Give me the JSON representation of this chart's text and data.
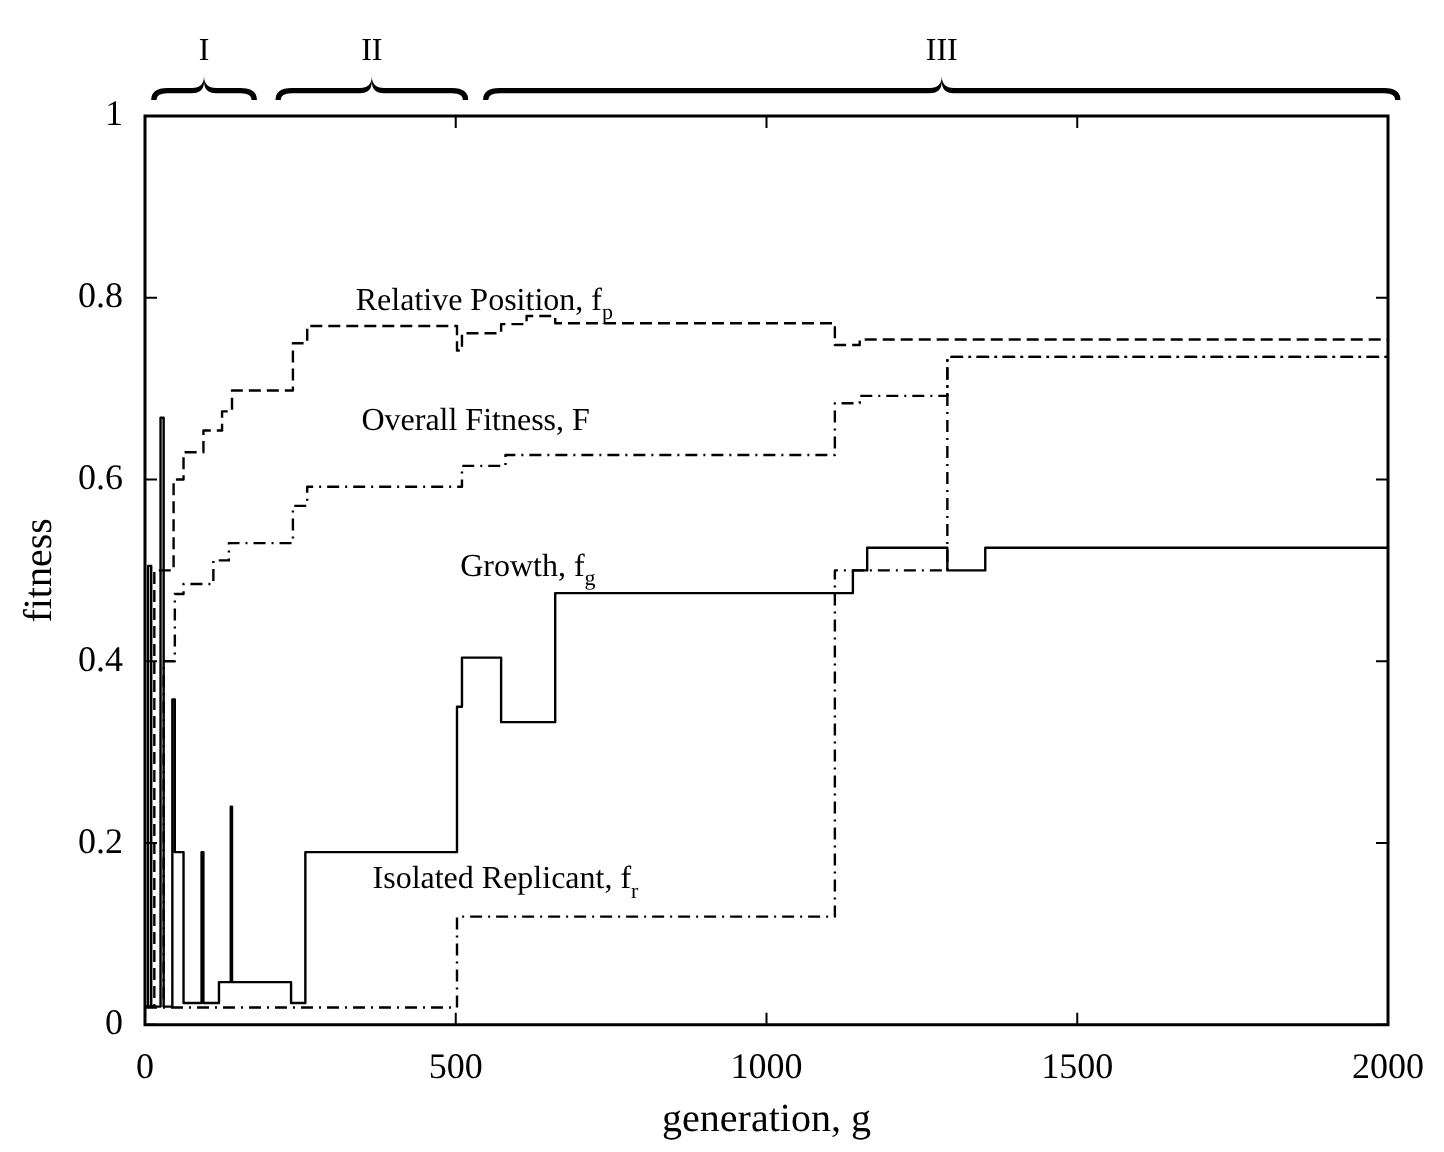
{
  "chart_data": {
    "type": "step",
    "xlabel": "generation, g",
    "ylabel": "fitness",
    "xlim": [
      0,
      2000
    ],
    "xticks": [
      0,
      500,
      1000,
      1500,
      2000
    ],
    "ylim": [
      0,
      1
    ],
    "yticks": [
      0,
      0.2,
      0.4,
      0.6,
      0.8,
      1
    ],
    "grid": false,
    "legend": false,
    "marker": "none",
    "series": [
      {
        "name": "Relative Position, f$_{p}$",
        "color": "#000000",
        "line_style": "dashed",
        "x": [
          0,
          15,
          46,
          62,
          94,
          124,
          140,
          238,
          261,
          502,
          510,
          573,
          614,
          660,
          1110,
          1150,
          2000
        ],
        "values": [
          0.02,
          0.5,
          0.6,
          0.63,
          0.654,
          0.675,
          0.698,
          0.75,
          0.769,
          0.742,
          0.761,
          0.771,
          0.78,
          0.772,
          0.748,
          0.754,
          0.754
        ]
      },
      {
        "name": "Overall Fitness, F",
        "color": "#000000",
        "line_style": "dotted",
        "x": [
          0,
          30,
          48,
          62,
          110,
          135,
          238,
          261,
          510,
          580,
          1110,
          1150,
          1291,
          2000
        ],
        "values": [
          0.02,
          0.4,
          0.474,
          0.485,
          0.511,
          0.53,
          0.571,
          0.592,
          0.615,
          0.627,
          0.684,
          0.692,
          0.735,
          0.735
        ]
      },
      {
        "name": "Growth, f$_{g}$",
        "color": "#000000",
        "line_style": "solid",
        "x": [
          0,
          5,
          10,
          25,
          30,
          44,
          48,
          62,
          91,
          94,
          119,
          138,
          140,
          235,
          258,
          502,
          510,
          573,
          660,
          1139,
          1162,
          1291,
          1352,
          2000
        ],
        "values": [
          0.02,
          0.505,
          0.02,
          0.668,
          0.02,
          0.358,
          0.19,
          0.024,
          0.19,
          0.024,
          0.047,
          0.24,
          0.047,
          0.024,
          0.19,
          0.35,
          0.404,
          0.333,
          0.475,
          0.5,
          0.525,
          0.5,
          0.525,
          0.525
        ]
      },
      {
        "name": "Isolated Replicant, f$_{r}$",
        "color": "#000000",
        "line_style": "dotted",
        "x": [
          0,
          502,
          1110,
          1291,
          2000
        ],
        "values": [
          0.019,
          0.119,
          0.5,
          0.735,
          0.735
        ]
      }
    ],
    "annotations": [
      "I",
      "II",
      "III"
    ]
  }
}
